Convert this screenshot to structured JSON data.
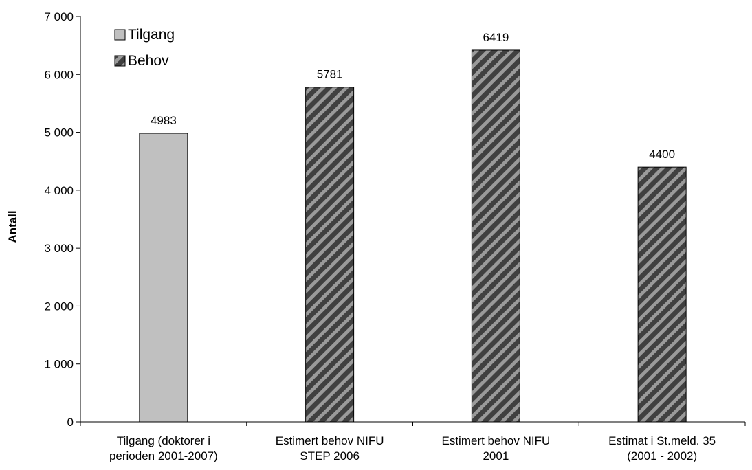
{
  "chart_data": {
    "type": "bar",
    "categories": [
      [
        "Tilgang (doktorer i",
        "perioden 2001-2007)"
      ],
      [
        "Estimert behov NIFU",
        "STEP 2006"
      ],
      [
        "Estimert behov NIFU",
        "2001"
      ],
      [
        "Estimat i St.meld. 35",
        "(2001 - 2002)"
      ]
    ],
    "values": [
      4983,
      5781,
      6419,
      4400
    ],
    "data_labels": [
      "4983",
      "5781",
      "6419",
      "4400"
    ],
    "bar_series": [
      "Tilgang",
      "Behov",
      "Behov",
      "Behov"
    ],
    "ylabel": "Antall",
    "ylim": [
      0,
      7000
    ],
    "yticks": [
      0,
      1000,
      2000,
      3000,
      4000,
      5000,
      6000,
      7000
    ],
    "ytick_labels": [
      "0",
      "1 000",
      "2 000",
      "3 000",
      "4 000",
      "5 000",
      "6 000",
      "7 000"
    ],
    "grid": false,
    "legend": {
      "placement": "top-left",
      "entries": [
        {
          "name": "Tilgang",
          "style": "solid",
          "color": "#c0c0c0"
        },
        {
          "name": "Behov",
          "style": "hatched",
          "color": "#404040",
          "hatch_color": "#9a9a9a"
        }
      ]
    }
  }
}
